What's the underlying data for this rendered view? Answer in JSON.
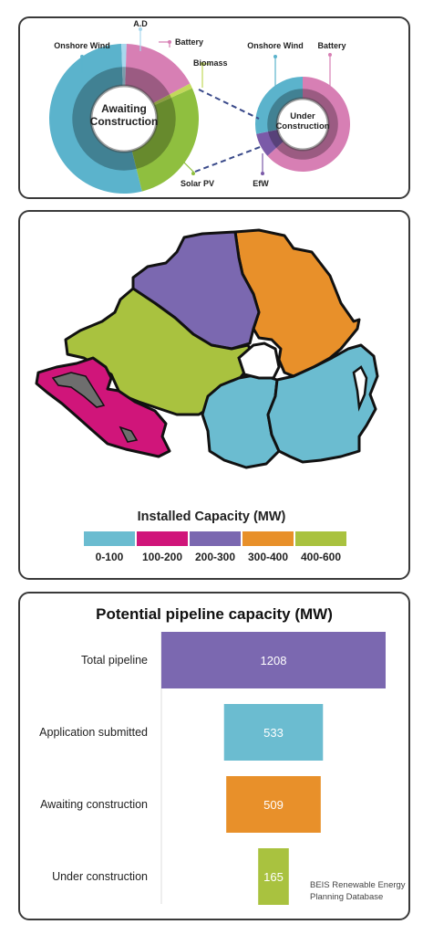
{
  "donut_panel": {
    "awaiting": {
      "center_lines": [
        "Awaiting",
        "Construction"
      ],
      "labels": {
        "onshore_wind": "Onshore Wind",
        "ad": "A.D",
        "battery": "Battery",
        "biomass": "Biomass",
        "solar_pv": "Solar PV"
      }
    },
    "under": {
      "center_lines": [
        "Under",
        "Construction"
      ],
      "labels": {
        "onshore_wind": "Onshore Wind",
        "battery": "Battery",
        "efw": "EfW"
      }
    },
    "colors": {
      "onshore_wind": "#5bb3cc",
      "ad": "#a9d8ee",
      "battery": "#d77fb4",
      "biomass": "#c2d85a",
      "solar_pv": "#8fbf3f",
      "efw": "#7b5aa8"
    }
  },
  "map_panel": {
    "legend_title": "Installed Capacity (MW)",
    "legend": [
      {
        "label": "0-100",
        "color": "#6bbcd0"
      },
      {
        "label": "100-200",
        "color": "#d0157a"
      },
      {
        "label": "200-300",
        "color": "#7b68b0"
      },
      {
        "label": "300-400",
        "color": "#e8902a"
      },
      {
        "label": "400-600",
        "color": "#a9c23f"
      }
    ]
  },
  "chart_data": {
    "type": "bar",
    "title": "Potential pipeline capacity (MW)",
    "categories": [
      "Total pipeline",
      "Application submitted",
      "Awaiting construction",
      "Under construction"
    ],
    "values": [
      1208,
      533,
      509,
      165
    ],
    "colors": [
      "#7b68b0",
      "#6bbcd0",
      "#e8902a",
      "#a9c23f"
    ],
    "value_labels": [
      "1208",
      "533",
      "509",
      "165"
    ],
    "source": [
      "BEIS Renewable Energy",
      "Planning Database"
    ]
  }
}
